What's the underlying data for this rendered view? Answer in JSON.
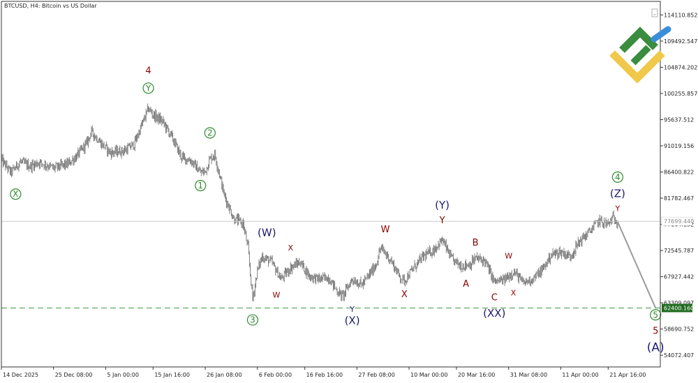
{
  "header": {
    "symbol_title": "BTCUSD, H4:  Bitcoin vs US Dollar"
  },
  "colors": {
    "frame": "#333333",
    "candles": "#707070",
    "projection": "#9a9a9a",
    "green_label": "#2c8a2c",
    "red_label": "#8b0000",
    "navy_label": "#1a1a6e",
    "support_line": "#5fa85f",
    "support_badge_bg": "#1f6b1f",
    "current_badge_bg": "#ffffff",
    "logo_green": "#3a8c3f",
    "logo_yellow": "#f0c84a",
    "logo_blue": "#3a8fd9"
  },
  "chart_data": {
    "type": "candlestick",
    "timeframe": "H4",
    "ylim": [
      52000,
      116500
    ],
    "xlim": [
      "2025-12-14",
      "2026-05-02"
    ],
    "y_ticks": [
      "114110.852",
      "109492.547",
      "104874.202",
      "100255.857",
      "95637.512",
      "91019.156",
      "86400.822",
      "81782.467",
      "77164.132",
      "72545.787",
      "67927.442",
      "63309.097",
      "58690.752",
      "54072.407"
    ],
    "x_ticks": [
      "14 Dec 2025",
      "25 Dec 08:00",
      "5 Jan 00:00",
      "15 Jan 16:00",
      "26 Jan 08:00",
      "6 Feb 00:00",
      "16 Feb 16:00",
      "27 Feb 08:00",
      "10 Mar 00:00",
      "20 Mar 16:00",
      "31 Mar 08:00",
      "11 Apr 00:00",
      "21 Apr 16:00"
    ],
    "price_path": [
      [
        "2025-12-14",
        88500
      ],
      [
        "2025-12-16",
        86300
      ],
      [
        "2025-12-18",
        88200
      ],
      [
        "2025-12-20",
        87400
      ],
      [
        "2025-12-22",
        88100
      ],
      [
        "2025-12-25",
        87100
      ],
      [
        "2025-12-28",
        87800
      ],
      [
        "2025-12-30",
        89300
      ],
      [
        "2026-01-01",
        91500
      ],
      [
        "2026-01-02",
        93500
      ],
      [
        "2026-01-04",
        91500
      ],
      [
        "2026-01-06",
        89800
      ],
      [
        "2026-01-09",
        90200
      ],
      [
        "2026-01-11",
        91300
      ],
      [
        "2026-01-13",
        95500
      ],
      [
        "2026-01-14",
        97600
      ],
      [
        "2026-01-15",
        96500
      ],
      [
        "2026-01-17",
        95300
      ],
      [
        "2026-01-19",
        92500
      ],
      [
        "2026-01-21",
        89000
      ],
      [
        "2026-01-23",
        88400
      ],
      [
        "2026-01-25",
        86300
      ],
      [
        "2026-01-26",
        86500
      ],
      [
        "2026-01-27",
        88700
      ],
      [
        "2026-01-28",
        89500
      ],
      [
        "2026-01-29",
        86000
      ],
      [
        "2026-01-30",
        82300
      ],
      [
        "2026-02-01",
        78200
      ],
      [
        "2026-02-03",
        77300
      ],
      [
        "2026-02-04",
        73000
      ],
      [
        "2026-02-05",
        64000
      ],
      [
        "2026-02-06",
        69000
      ],
      [
        "2026-02-07",
        71500
      ],
      [
        "2026-02-09",
        70500
      ],
      [
        "2026-02-11",
        67500
      ],
      [
        "2026-02-13",
        69500
      ],
      [
        "2026-02-15",
        70500
      ],
      [
        "2026-02-17",
        68000
      ],
      [
        "2026-02-19",
        67500
      ],
      [
        "2026-02-21",
        67800
      ],
      [
        "2026-02-23",
        65200
      ],
      [
        "2026-02-24",
        64500
      ],
      [
        "2026-02-26",
        67500
      ],
      [
        "2026-02-28",
        66500
      ],
      [
        "2026-03-01",
        67500
      ],
      [
        "2026-03-03",
        70000
      ],
      [
        "2026-03-04",
        73000
      ],
      [
        "2026-03-06",
        71000
      ],
      [
        "2026-03-08",
        68000
      ],
      [
        "2026-03-09",
        67200
      ],
      [
        "2026-03-11",
        69500
      ],
      [
        "2026-03-13",
        71500
      ],
      [
        "2026-03-15",
        72500
      ],
      [
        "2026-03-17",
        74400
      ],
      [
        "2026-03-19",
        71000
      ],
      [
        "2026-03-21",
        69800
      ],
      [
        "2026-03-23",
        70200
      ],
      [
        "2026-03-24",
        71200
      ],
      [
        "2026-03-26",
        70700
      ],
      [
        "2026-03-28",
        67000
      ],
      [
        "2026-03-30",
        67300
      ],
      [
        "2026-04-01",
        68800
      ],
      [
        "2026-04-02",
        68000
      ],
      [
        "2026-04-03",
        66800
      ],
      [
        "2026-04-05",
        67500
      ],
      [
        "2026-04-07",
        69000
      ],
      [
        "2026-04-09",
        71800
      ],
      [
        "2026-04-11",
        72300
      ],
      [
        "2026-04-13",
        71500
      ],
      [
        "2026-04-15",
        74200
      ],
      [
        "2026-04-17",
        75800
      ],
      [
        "2026-04-19",
        77800
      ],
      [
        "2026-04-21",
        77200
      ],
      [
        "2026-04-22",
        78300
      ],
      [
        "2026-04-23",
        77600
      ]
    ],
    "current_price": "77699.440",
    "support_level": "62400.160",
    "projection": {
      "from": [
        "2026-04-23",
        77600
      ],
      "to": [
        "2026-05-01",
        62400
      ]
    },
    "labels": [
      {
        "text": "X",
        "date": "2025-12-17",
        "price": 82500,
        "style": "green-circle"
      },
      {
        "text": "4",
        "date": "2026-01-14",
        "price": 104300,
        "style": "red"
      },
      {
        "text": "Y",
        "date": "2026-01-14",
        "price": 101200,
        "style": "green-circle"
      },
      {
        "text": "2",
        "date": "2026-01-27",
        "price": 93300,
        "style": "green-circle"
      },
      {
        "text": "1",
        "date": "2026-01-25",
        "price": 84000,
        "style": "green-circle"
      },
      {
        "text": "(W)",
        "date": "2026-02-08",
        "price": 75700,
        "style": "navy"
      },
      {
        "text": "X",
        "date": "2026-02-13",
        "price": 73000,
        "style": "red-small"
      },
      {
        "text": "W",
        "date": "2026-02-10",
        "price": 64700,
        "style": "red-small"
      },
      {
        "text": "3",
        "date": "2026-02-05",
        "price": 60300,
        "style": "green-circle"
      },
      {
        "text": "Y",
        "date": "2026-02-26",
        "price": 62200,
        "style": "navy-small"
      },
      {
        "text": "(X)",
        "date": "2026-02-26",
        "price": 60200,
        "style": "navy"
      },
      {
        "text": "W",
        "date": "2026-03-05",
        "price": 76300,
        "style": "red"
      },
      {
        "text": "X",
        "date": "2026-03-09",
        "price": 64900,
        "style": "red"
      },
      {
        "text": "(Y)",
        "date": "2026-03-17",
        "price": 80600,
        "style": "navy"
      },
      {
        "text": "Y",
        "date": "2026-03-17",
        "price": 77900,
        "style": "red"
      },
      {
        "text": "B",
        "date": "2026-03-24",
        "price": 74000,
        "style": "red"
      },
      {
        "text": "A",
        "date": "2026-03-22",
        "price": 66700,
        "style": "red"
      },
      {
        "text": "W",
        "date": "2026-03-31",
        "price": 71600,
        "style": "red-small"
      },
      {
        "text": "X",
        "date": "2026-04-01",
        "price": 65100,
        "style": "red-small"
      },
      {
        "text": "C",
        "date": "2026-03-28",
        "price": 64300,
        "style": "red"
      },
      {
        "text": "(XX)",
        "date": "2026-03-28",
        "price": 61500,
        "style": "navy"
      },
      {
        "text": "4",
        "date": "2026-04-23",
        "price": 85500,
        "style": "green-circle"
      },
      {
        "text": "(Z)",
        "date": "2026-04-23",
        "price": 82600,
        "style": "navy"
      },
      {
        "text": "Y",
        "date": "2026-04-23",
        "price": 80000,
        "style": "red-small"
      },
      {
        "text": "5",
        "date": "2026-05-01",
        "price": 61200,
        "style": "green-circle"
      },
      {
        "text": "5",
        "date": "2026-05-01",
        "price": 58400,
        "style": "red"
      },
      {
        "text": "(A)",
        "date": "2026-05-01",
        "price": 55500,
        "style": "navy-large"
      }
    ]
  }
}
